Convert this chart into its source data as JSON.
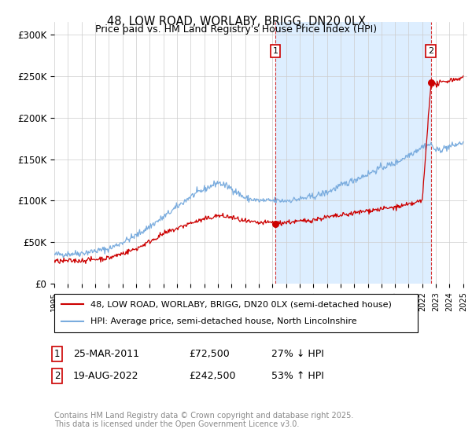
{
  "title": "48, LOW ROAD, WORLABY, BRIGG, DN20 0LX",
  "subtitle": "Price paid vs. HM Land Registry's House Price Index (HPI)",
  "ylabel_ticks": [
    "£0",
    "£50K",
    "£100K",
    "£150K",
    "£200K",
    "£250K",
    "£300K"
  ],
  "ytick_values": [
    0,
    50000,
    100000,
    150000,
    200000,
    250000,
    300000
  ],
  "ylim": [
    0,
    315000
  ],
  "year_start": 1995,
  "year_end": 2025,
  "transaction1_date": 2011.23,
  "transaction1_label": "1",
  "transaction1_price": 72500,
  "transaction2_date": 2022.63,
  "transaction2_label": "2",
  "transaction2_price": 242500,
  "red_color": "#cc0000",
  "blue_color": "#7aacde",
  "shade_color": "#ddeeff",
  "vline_color": "#cc0000",
  "grid_color": "#cccccc",
  "background_color": "#ffffff",
  "legend1_text": "48, LOW ROAD, WORLABY, BRIGG, DN20 0LX (semi-detached house)",
  "legend2_text": "HPI: Average price, semi-detached house, North Lincolnshire",
  "footer": "Contains HM Land Registry data © Crown copyright and database right 2025.\nThis data is licensed under the Open Government Licence v3.0."
}
